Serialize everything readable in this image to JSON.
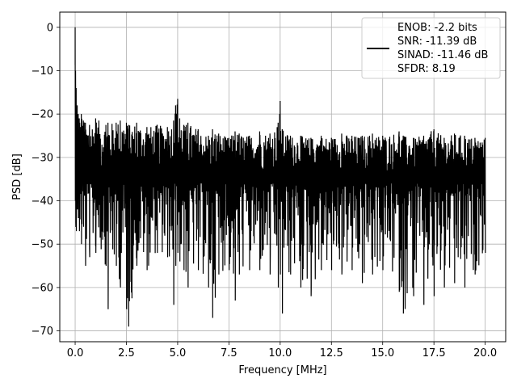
{
  "chart_data": {
    "type": "line",
    "xlabel": "Frequency [MHz]",
    "ylabel": "PSD [dB]",
    "xlim": [
      -0.75,
      21.0
    ],
    "ylim": [
      -72.5,
      3.5
    ],
    "xticks": [
      0.0,
      2.5,
      5.0,
      7.5,
      10.0,
      12.5,
      15.0,
      17.5,
      20.0
    ],
    "xtick_labels": [
      "0.0",
      "2.5",
      "5.0",
      "7.5",
      "10.0",
      "12.5",
      "15.0",
      "17.5",
      "20.0"
    ],
    "yticks": [
      0,
      -10,
      -20,
      -30,
      -40,
      -50,
      -60,
      -70
    ],
    "ytick_labels": [
      "0",
      "−10",
      "−20",
      "−30",
      "−40",
      "−50",
      "−60",
      "−70"
    ],
    "grid": true,
    "legend_position": "top-right",
    "series": [
      {
        "name": "ENOB: -2.2 bits\nSNR: -11.39 dB\nSINAD: -11.46 dB\nSFDR: 8.19",
        "color": "#000000",
        "x": [
          0.0,
          0.02,
          0.05,
          0.1,
          0.15,
          0.2,
          0.3,
          0.4,
          0.5,
          0.7,
          1.0,
          1.5,
          1.6,
          2.0,
          2.2,
          2.5,
          2.6,
          3.0,
          3.5,
          4.0,
          4.5,
          4.8,
          4.9,
          5.0,
          5.1,
          5.3,
          5.5,
          6.0,
          6.5,
          6.7,
          7.0,
          7.5,
          7.8,
          8.0,
          8.5,
          9.0,
          9.5,
          9.9,
          10.0,
          10.1,
          10.5,
          11.0,
          11.5,
          12.0,
          12.5,
          13.0,
          13.5,
          14.0,
          14.5,
          15.0,
          15.8,
          16.0,
          16.5,
          17.0,
          17.5,
          18.0,
          18.5,
          19.0,
          19.5,
          20.0
        ],
        "upper": [
          0.0,
          -10.0,
          -14.0,
          -18.0,
          -20.0,
          -21.0,
          -20.0,
          -21.5,
          -22.0,
          -22.5,
          -21.0,
          -22.5,
          -22.0,
          -22.0,
          -21.5,
          -22.0,
          -22.5,
          -22.0,
          -23.0,
          -22.5,
          -23.0,
          -21.5,
          -18.0,
          -16.5,
          -21.0,
          -22.5,
          -22.0,
          -23.5,
          -25.0,
          -23.5,
          -24.5,
          -25.5,
          -24.0,
          -24.5,
          -25.0,
          -24.0,
          -24.5,
          -22.0,
          -17.0,
          -23.5,
          -25.0,
          -25.0,
          -25.5,
          -25.0,
          -25.5,
          -24.5,
          -25.0,
          -25.0,
          -24.5,
          -25.0,
          -24.0,
          -25.0,
          -25.5,
          -25.0,
          -23.5,
          -25.5,
          -24.5,
          -25.0,
          -25.5,
          -25.5
        ],
        "lower": [
          -40.0,
          -45.0,
          -47.0,
          -42.0,
          -44.0,
          -47.0,
          -50.0,
          -46.0,
          -55.0,
          -53.0,
          -52.0,
          -55.0,
          -65.0,
          -55.0,
          -60.0,
          -65.0,
          -69.0,
          -55.0,
          -56.0,
          -52.0,
          -53.0,
          -64.0,
          -55.0,
          -52.0,
          -54.0,
          -56.0,
          -60.0,
          -56.0,
          -60.0,
          -67.0,
          -57.0,
          -56.0,
          -63.0,
          -57.0,
          -56.0,
          -56.0,
          -57.0,
          -60.0,
          -57.0,
          -66.0,
          -57.0,
          -60.0,
          -62.0,
          -56.0,
          -56.0,
          -57.0,
          -56.0,
          -59.0,
          -57.0,
          -56.0,
          -61.0,
          -66.0,
          -62.0,
          -64.0,
          -62.0,
          -60.0,
          -59.0,
          -60.0,
          -57.0,
          -52.0
        ]
      }
    ]
  }
}
